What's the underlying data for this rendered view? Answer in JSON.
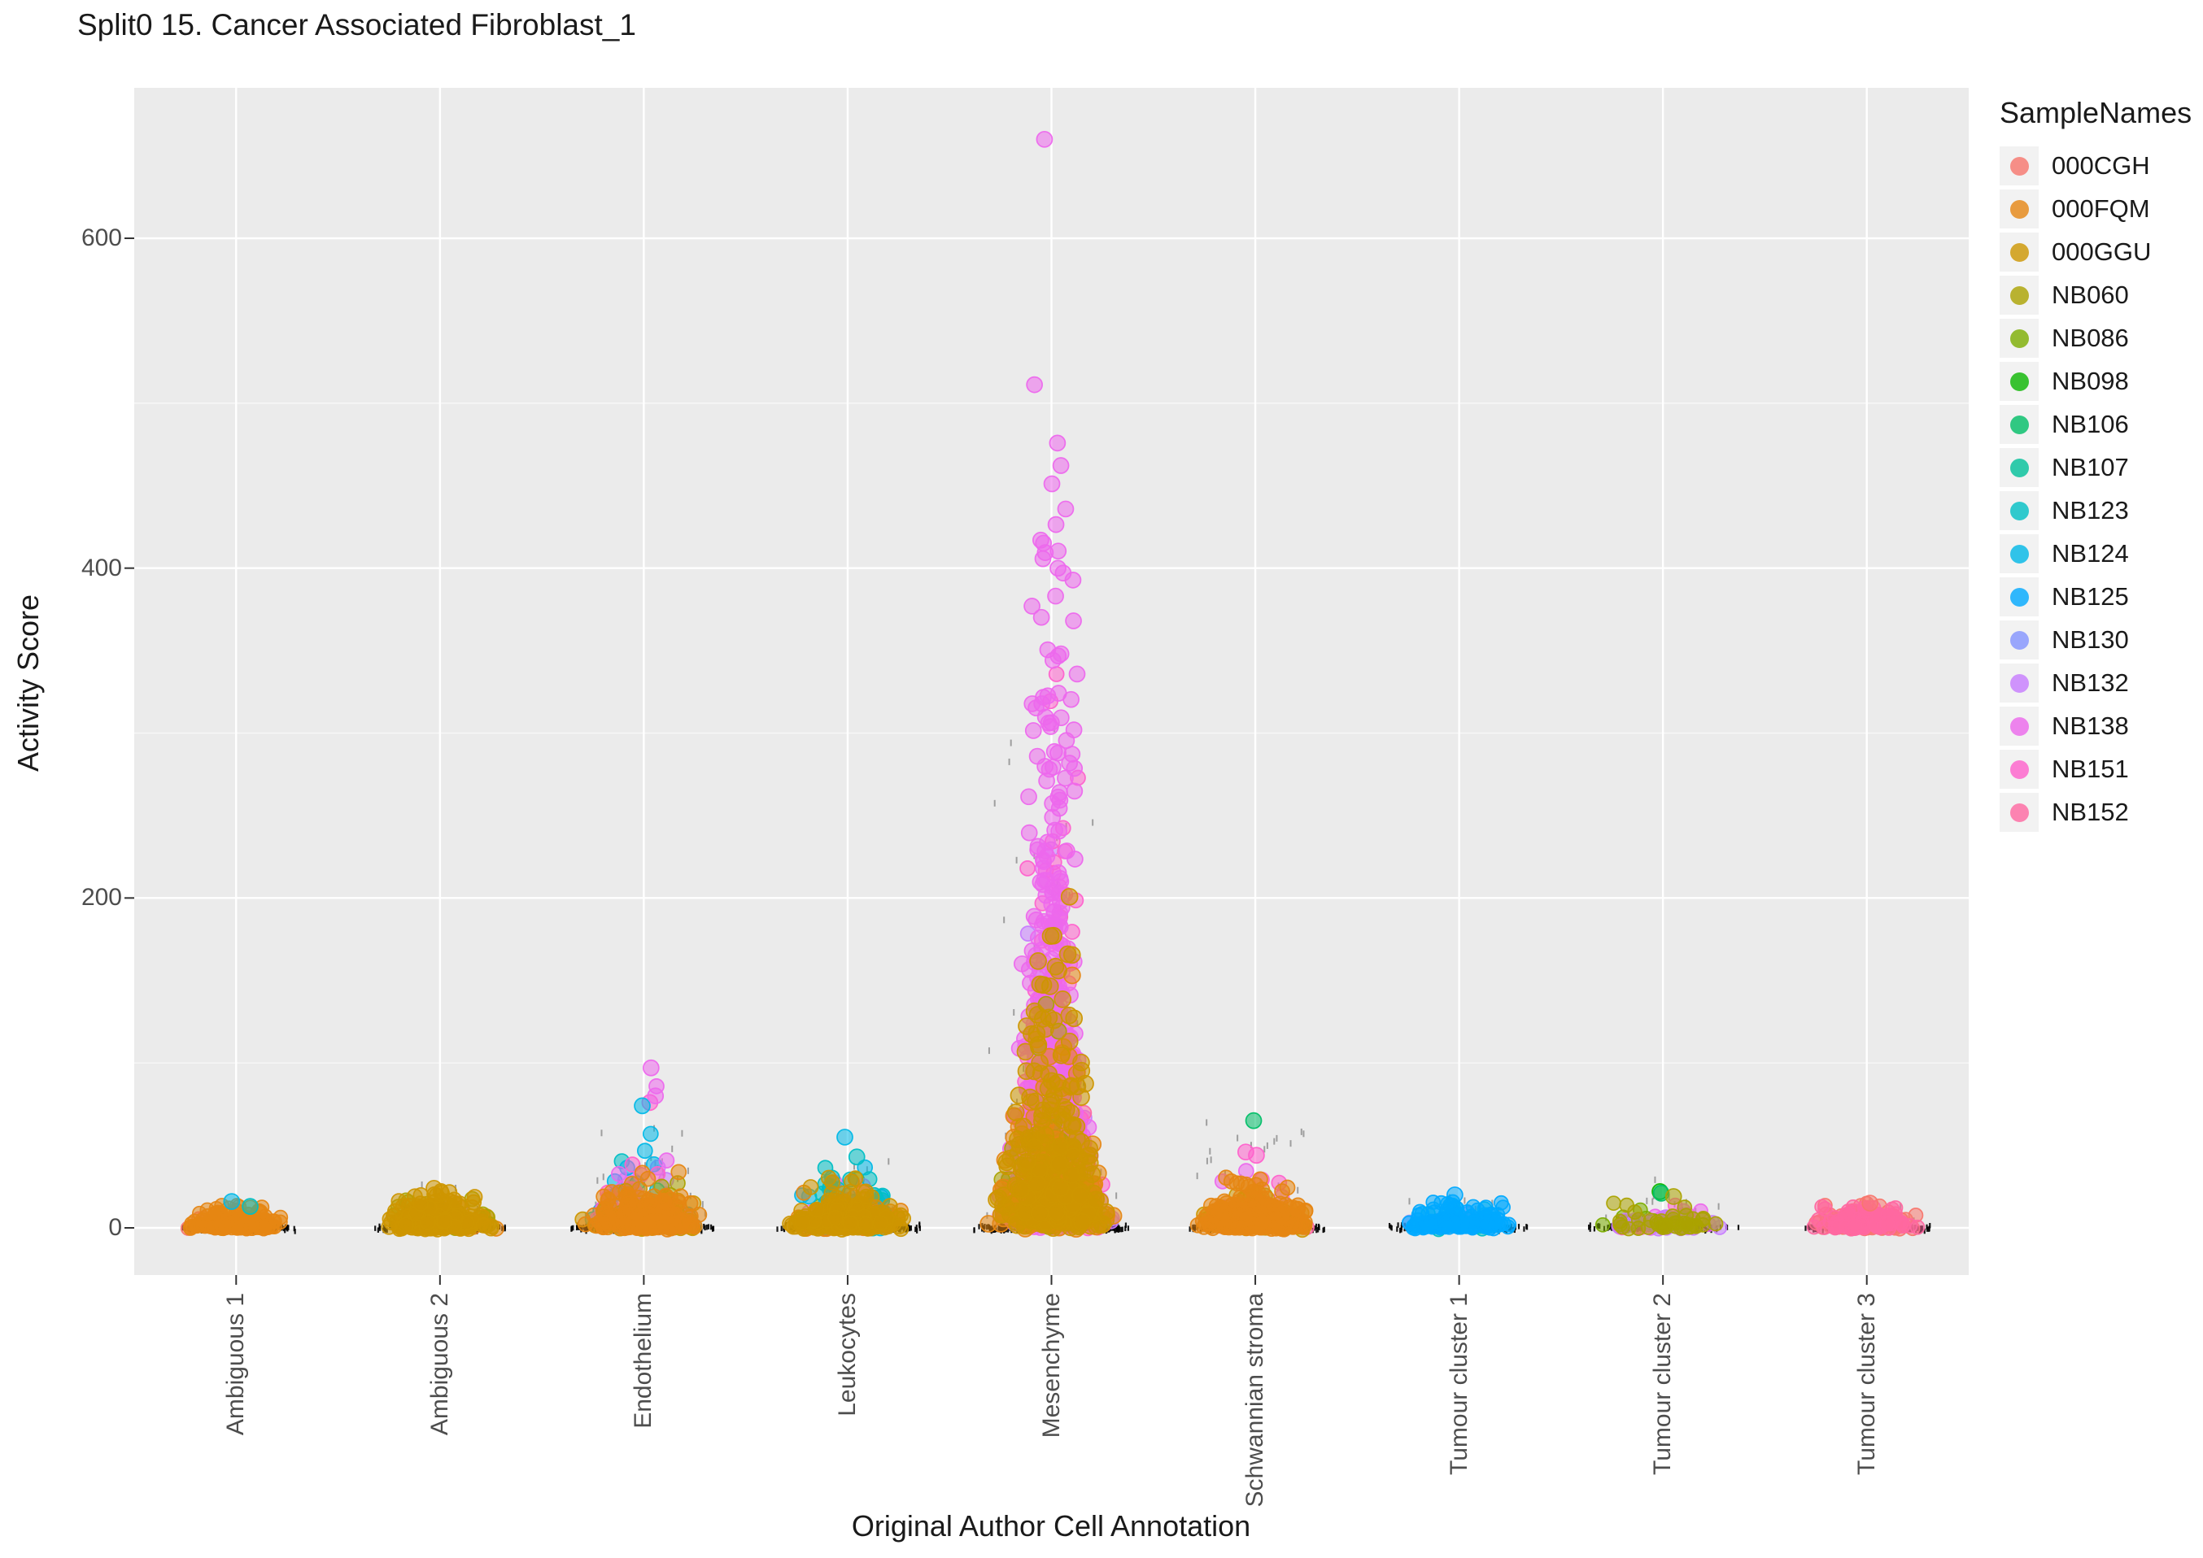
{
  "legend": {
    "title": "SampleNames",
    "entries": [
      {
        "label": "000CGH",
        "color": "#F8766D"
      },
      {
        "label": "000FQM",
        "color": "#E68613"
      },
      {
        "label": "000GGU",
        "color": "#CD9600"
      },
      {
        "label": "NB060",
        "color": "#ABA300"
      },
      {
        "label": "NB086",
        "color": "#7CAE00"
      },
      {
        "label": "NB098",
        "color": "#0CB702"
      },
      {
        "label": "NB106",
        "color": "#00BE67"
      },
      {
        "label": "NB107",
        "color": "#00C19A"
      },
      {
        "label": "NB123",
        "color": "#00BFC4"
      },
      {
        "label": "NB124",
        "color": "#00B8E7"
      },
      {
        "label": "NB125",
        "color": "#00A9FF"
      },
      {
        "label": "NB130",
        "color": "#8494FF"
      },
      {
        "label": "NB132",
        "color": "#C77CFF"
      },
      {
        "label": "NB138",
        "color": "#ED68ED"
      },
      {
        "label": "NB151",
        "color": "#FF61CC"
      },
      {
        "label": "NB152",
        "color": "#FF68A1"
      }
    ]
  },
  "chart_data": {
    "type": "scatter",
    "title": "Split0 15. Cancer Associated Fibroblast_1",
    "x_label": "Original Author Cell Annotation",
    "y_label": "Activity Score",
    "y_ticks": [
      0,
      200,
      400,
      600
    ],
    "y_minor_ticks": [
      100,
      300,
      500
    ],
    "ylim_display": [
      -30,
      690
    ],
    "panel_bg": "#EBEBEB",
    "grid_color": "#FFFFFF",
    "point_alpha": 0.55,
    "categories": [
      "Ambiguous 1",
      "Ambiguous 2",
      "Endothelium",
      "Leukocytes",
      "Mesenchyme",
      "Schwannian stroma",
      "Tumour cluster 1",
      "Tumour cluster 2",
      "Tumour cluster 3"
    ],
    "cat_data": [
      {
        "name": "Ambiguous 1",
        "strip": {
          "n": 300,
          "hw": 75,
          "col": 22,
          "tick_n": 20,
          "tick_ymax": 18
        },
        "groups": [
          {
            "sample": "000GGU",
            "n": 25,
            "scale": 3,
            "max": 10,
            "r": 8.5
          },
          {
            "sample": "000CGH",
            "n": 15,
            "scale": 3,
            "max": 9,
            "r": 8.5
          },
          {
            "sample": "000FQM",
            "n": 170,
            "scale": 3.5,
            "max": 13,
            "r": 8.5
          }
        ],
        "outliers": [
          {
            "sample": "NB124",
            "y": 16
          },
          {
            "sample": "NB123",
            "y": 13
          }
        ]
      },
      {
        "name": "Ambiguous 2",
        "strip": {
          "n": 300,
          "hw": 85,
          "col": 24,
          "tick_n": 24,
          "tick_ymax": 28
        },
        "groups": [
          {
            "sample": "000FQM",
            "n": 30,
            "scale": 4,
            "max": 15,
            "r": 9
          },
          {
            "sample": "NB060",
            "n": 45,
            "scale": 5,
            "max": 20,
            "r": 9
          },
          {
            "sample": "000GGU",
            "n": 230,
            "scale": 5.5,
            "max": 24,
            "r": 9
          }
        ],
        "outliers": [
          {
            "sample": "000GGU",
            "y": 24
          },
          {
            "sample": "000GGU",
            "y": 21
          }
        ]
      },
      {
        "name": "Endothelium",
        "strip": {
          "n": 330,
          "hw": 95,
          "col": 26,
          "tick_n": 45,
          "tick_ymax": 62
        },
        "groups": [
          {
            "sample": "NB132",
            "n": 8,
            "scale": 15,
            "max": 38,
            "r": 9
          },
          {
            "sample": "NB125",
            "n": 10,
            "scale": 12,
            "max": 40,
            "r": 9
          },
          {
            "sample": "NB123",
            "n": 20,
            "scale": 14,
            "max": 45,
            "r": 9
          },
          {
            "sample": "NB124",
            "n": 15,
            "scale": 18,
            "max": 72,
            "r": 9
          },
          {
            "sample": "NB151",
            "n": 12,
            "scale": 20,
            "max": 70,
            "r": 9
          },
          {
            "sample": "NB138",
            "n": 25,
            "scale": 22,
            "max": 90,
            "r": 9
          },
          {
            "sample": "NB060",
            "n": 30,
            "scale": 10,
            "max": 48,
            "r": 9
          },
          {
            "sample": "000GGU",
            "n": 110,
            "scale": 6,
            "max": 35,
            "r": 9
          },
          {
            "sample": "000FQM",
            "n": 180,
            "scale": 7,
            "max": 40,
            "r": 9
          }
        ],
        "outliers": [
          {
            "sample": "NB138",
            "y": 97
          },
          {
            "sample": "NB151",
            "y": 76
          },
          {
            "sample": "NB124",
            "y": 74
          },
          {
            "sample": "NB138",
            "y": 80
          }
        ]
      },
      {
        "name": "Leukocytes",
        "strip": {
          "n": 330,
          "hw": 95,
          "col": 26,
          "tick_n": 35,
          "tick_ymax": 45
        },
        "groups": [
          {
            "sample": "NB086",
            "n": 8,
            "scale": 10,
            "max": 30,
            "r": 9
          },
          {
            "sample": "NB138",
            "n": 10,
            "scale": 8,
            "max": 28,
            "r": 9
          },
          {
            "sample": "NB125",
            "n": 12,
            "scale": 10,
            "max": 35,
            "r": 9
          },
          {
            "sample": "NB124",
            "n": 20,
            "scale": 13,
            "max": 48,
            "r": 9
          },
          {
            "sample": "NB123",
            "n": 25,
            "scale": 12,
            "max": 42,
            "r": 9
          },
          {
            "sample": "000FQM",
            "n": 60,
            "scale": 5,
            "max": 25,
            "r": 9
          },
          {
            "sample": "000GGU",
            "n": 270,
            "scale": 6,
            "max": 30,
            "r": 9
          }
        ],
        "outliers": [
          {
            "sample": "NB124",
            "y": 55
          },
          {
            "sample": "NB123",
            "y": 43
          }
        ]
      },
      {
        "name": "Mesenchyme",
        "strip": {
          "n": 550,
          "hw": 100,
          "col": 36,
          "tick_n": 70,
          "tick_ymax": 330
        },
        "groups": [
          {
            "sample": "NB132",
            "n": 60,
            "scale": 45,
            "max": 260,
            "r": 9
          },
          {
            "sample": "NB152",
            "n": 40,
            "scale": 35,
            "max": 200,
            "r": 9
          },
          {
            "sample": "NB151",
            "n": 200,
            "scale": 70,
            "max": 420,
            "r": 9
          },
          {
            "sample": "NB138",
            "n": 500,
            "scale": 100,
            "max": 525,
            "r": 9.5
          },
          {
            "sample": "NB060",
            "n": 70,
            "scale": 25,
            "max": 140,
            "r": 9.5
          },
          {
            "sample": "000FQM",
            "n": 160,
            "scale": 30,
            "max": 180,
            "r": 10
          },
          {
            "sample": "000GGU",
            "n": 260,
            "scale": 45,
            "max": 245,
            "r": 10
          }
        ],
        "outliers": [
          {
            "sample": "NB138",
            "y": 660
          }
        ]
      },
      {
        "name": "Schwannian stroma",
        "strip": {
          "n": 320,
          "hw": 90,
          "col": 26,
          "tick_n": 40,
          "tick_ymax": 75
        },
        "groups": [
          {
            "sample": "NB152",
            "n": 8,
            "scale": 10,
            "max": 30,
            "r": 9
          },
          {
            "sample": "NB138",
            "n": 10,
            "scale": 12,
            "max": 35,
            "r": 9
          },
          {
            "sample": "NB151",
            "n": 15,
            "scale": 14,
            "max": 40,
            "r": 9
          },
          {
            "sample": "NB060",
            "n": 20,
            "scale": 6,
            "max": 20,
            "r": 9
          },
          {
            "sample": "000GGU",
            "n": 60,
            "scale": 5,
            "max": 22,
            "r": 9
          },
          {
            "sample": "000FQM",
            "n": 250,
            "scale": 7,
            "max": 35,
            "r": 9
          }
        ],
        "outliers": [
          {
            "sample": "NB106",
            "y": 65
          },
          {
            "sample": "NB151",
            "y": 46
          },
          {
            "sample": "NB151",
            "y": 44
          }
        ]
      },
      {
        "name": "Tumour cluster 1",
        "strip": {
          "n": 300,
          "hw": 90,
          "col": 24,
          "tick_n": 22,
          "tick_ymax": 25
        },
        "groups": [
          {
            "sample": "NB130",
            "n": 10,
            "scale": 3,
            "max": 10,
            "r": 8.5
          },
          {
            "sample": "NB123",
            "n": 6,
            "scale": 3,
            "max": 10,
            "r": 8.5
          },
          {
            "sample": "NB124",
            "n": 15,
            "scale": 4,
            "max": 14,
            "r": 8.5
          },
          {
            "sample": "NB125",
            "n": 140,
            "scale": 4.5,
            "max": 18,
            "r": 8.5
          }
        ],
        "outliers": [
          {
            "sample": "NB125",
            "y": 20
          }
        ]
      },
      {
        "name": "Tumour cluster 2",
        "strip": {
          "n": 260,
          "hw": 95,
          "col": 24,
          "tick_n": 28,
          "tick_ymax": 35
        },
        "groups": [
          {
            "sample": "NB152",
            "n": 5,
            "scale": 3,
            "max": 10,
            "r": 8.5
          },
          {
            "sample": "NB151",
            "n": 8,
            "scale": 4,
            "max": 14,
            "r": 8.5
          },
          {
            "sample": "NB138",
            "n": 15,
            "scale": 4,
            "max": 15,
            "r": 8.5
          },
          {
            "sample": "NB086",
            "n": 8,
            "scale": 5,
            "max": 16,
            "r": 8.5
          },
          {
            "sample": "NB132",
            "n": 25,
            "scale": 4,
            "max": 16,
            "r": 8.5
          },
          {
            "sample": "NB060",
            "n": 40,
            "scale": 4,
            "max": 19,
            "r": 8.5
          }
        ],
        "outliers": [
          {
            "sample": "NB098",
            "y": 22
          },
          {
            "sample": "NB106",
            "y": 21
          },
          {
            "sample": "NB060",
            "y": 19
          }
        ]
      },
      {
        "name": "Tumour cluster 3",
        "strip": {
          "n": 300,
          "hw": 85,
          "col": 24,
          "tick_n": 20,
          "tick_ymax": 20
        },
        "groups": [
          {
            "sample": "NB151",
            "n": 15,
            "scale": 3,
            "max": 10,
            "r": 8.5
          },
          {
            "sample": "000CGH",
            "n": 85,
            "scale": 4,
            "max": 15,
            "r": 8.5
          },
          {
            "sample": "NB152",
            "n": 95,
            "scale": 4,
            "max": 14,
            "r": 8.5
          }
        ],
        "outliers": [
          {
            "sample": "000CGH",
            "y": 15
          }
        ]
      }
    ]
  }
}
